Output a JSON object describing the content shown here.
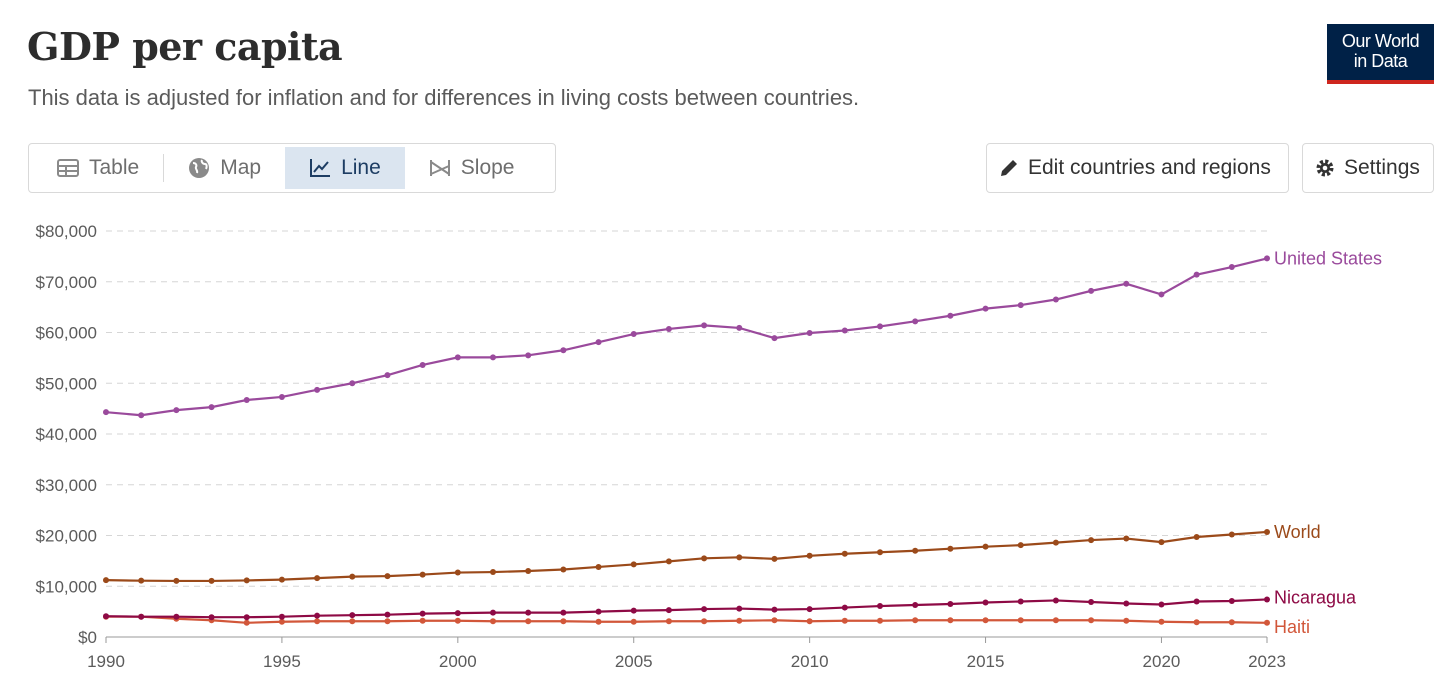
{
  "header": {
    "title": "GDP per capita",
    "subtitle": "This data is adjusted for inflation and for differences in living costs between countries.",
    "logo_line1": "Our World",
    "logo_line2": "in Data"
  },
  "tabs": [
    {
      "label": "Table",
      "icon": "table-icon"
    },
    {
      "label": "Map",
      "icon": "globe-icon"
    },
    {
      "label": "Line",
      "icon": "line-chart-icon",
      "active": true
    },
    {
      "label": "Slope",
      "icon": "slope-icon"
    }
  ],
  "buttons": {
    "edit": "Edit countries and regions",
    "settings": "Settings"
  },
  "chart_data": {
    "type": "line",
    "title": "GDP per capita",
    "ylim": [
      0,
      80000
    ],
    "yticks": [
      0,
      10000,
      20000,
      30000,
      40000,
      50000,
      60000,
      70000,
      80000
    ],
    "ytick_labels": [
      "$0",
      "$10,000",
      "$20,000",
      "$30,000",
      "$40,000",
      "$50,000",
      "$60,000",
      "$70,000",
      "$80,000"
    ],
    "xticks": [
      1990,
      1995,
      2000,
      2005,
      2010,
      2015,
      2020,
      2023
    ],
    "xtick_labels": [
      "1990",
      "1995",
      "2000",
      "2005",
      "2010",
      "2015",
      "2020",
      "2023"
    ],
    "grid": "horizontal-dashed",
    "x": [
      1990,
      1991,
      1992,
      1993,
      1994,
      1995,
      1996,
      1997,
      1998,
      1999,
      2000,
      2001,
      2002,
      2003,
      2004,
      2005,
      2006,
      2007,
      2008,
      2009,
      2010,
      2011,
      2012,
      2013,
      2014,
      2015,
      2016,
      2017,
      2018,
      2019,
      2020,
      2021,
      2022,
      2023
    ],
    "series": [
      {
        "name": "United States",
        "color": "#9a4a9c",
        "values": [
          44300,
          43700,
          44700,
          45300,
          46700,
          47300,
          48700,
          50000,
          51600,
          53600,
          55100,
          55100,
          55500,
          56500,
          58100,
          59700,
          60700,
          61400,
          60900,
          58900,
          59900,
          60400,
          61200,
          62200,
          63300,
          64700,
          65400,
          66500,
          68200,
          69600,
          67500,
          71400,
          72900,
          74600
        ]
      },
      {
        "name": "World",
        "color": "#9b4a1a",
        "values": [
          11200,
          11100,
          11050,
          11050,
          11150,
          11300,
          11600,
          11900,
          12000,
          12300,
          12700,
          12800,
          13000,
          13300,
          13800,
          14300,
          14900,
          15500,
          15700,
          15400,
          16000,
          16400,
          16700,
          17000,
          17400,
          17800,
          18100,
          18600,
          19100,
          19400,
          18700,
          19700,
          20200,
          20700
        ]
      },
      {
        "name": "Nicaragua",
        "color": "#8e0a45",
        "values": [
          4100,
          4000,
          4000,
          3900,
          3900,
          4000,
          4200,
          4300,
          4400,
          4600,
          4700,
          4800,
          4800,
          4800,
          5000,
          5200,
          5300,
          5500,
          5600,
          5400,
          5500,
          5800,
          6100,
          6300,
          6500,
          6800,
          7000,
          7200,
          6900,
          6600,
          6400,
          7000,
          7100,
          7400
        ]
      },
      {
        "name": "Haiti",
        "color": "#d2573a",
        "values": [
          4000,
          4000,
          3600,
          3300,
          2800,
          3000,
          3100,
          3100,
          3100,
          3200,
          3200,
          3100,
          3100,
          3100,
          3000,
          3000,
          3100,
          3100,
          3200,
          3300,
          3100,
          3200,
          3200,
          3300,
          3300,
          3300,
          3300,
          3300,
          3300,
          3200,
          3000,
          2900,
          2900,
          2800
        ]
      }
    ]
  }
}
